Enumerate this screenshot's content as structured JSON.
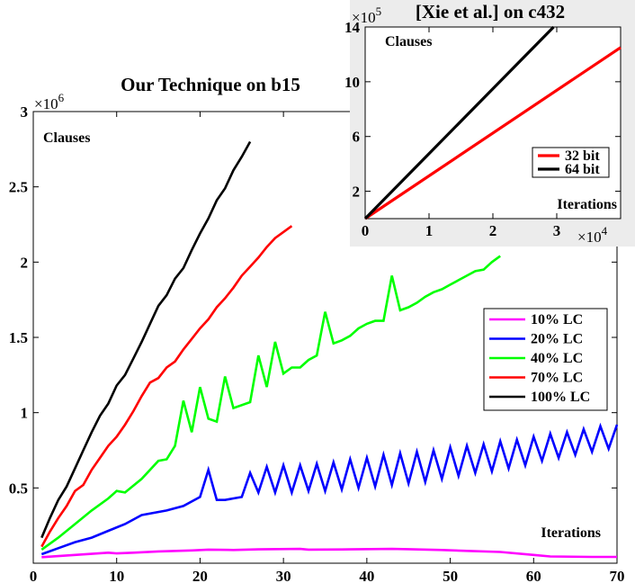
{
  "chart_data": [
    {
      "type": "line",
      "title": "Our Technique on b15",
      "xlabel": "Iterations",
      "ylabel": "Clauses",
      "y_multiplier_label": "×10",
      "y_multiplier_exp": "6",
      "xlim": [
        0,
        70
      ],
      "ylim": [
        0,
        3000000
      ],
      "xticks": [
        "0",
        "10",
        "20",
        "30",
        "40",
        "50",
        "60",
        "70"
      ],
      "yticks": [
        "0.5",
        "1",
        "1.5",
        "2",
        "2.5",
        "3"
      ],
      "grid": false,
      "legend_position": "right",
      "series": [
        {
          "name": "10% LC",
          "color": "#ff00ff",
          "points": [
            [
              1,
              40000
            ],
            [
              5,
              55000
            ],
            [
              9,
              70000
            ],
            [
              10,
              65000
            ],
            [
              12,
              70000
            ],
            [
              15,
              78000
            ],
            [
              19,
              85000
            ],
            [
              21,
              90000
            ],
            [
              24,
              88000
            ],
            [
              27,
              92000
            ],
            [
              32,
              95000
            ],
            [
              33,
              90000
            ],
            [
              38,
              92000
            ],
            [
              43,
              95000
            ],
            [
              45,
              93000
            ],
            [
              49,
              88000
            ],
            [
              52,
              82000
            ],
            [
              56,
              75000
            ],
            [
              60,
              55000
            ],
            [
              62,
              45000
            ],
            [
              67,
              42000
            ],
            [
              70,
              42000
            ]
          ]
        },
        {
          "name": "20% LC",
          "color": "#0000ff",
          "points": [
            [
              1,
              60000
            ],
            [
              3,
              100000
            ],
            [
              5,
              140000
            ],
            [
              7,
              170000
            ],
            [
              9,
              215000
            ],
            [
              11,
              260000
            ],
            [
              13,
              320000
            ],
            [
              16,
              350000
            ],
            [
              18,
              380000
            ],
            [
              20,
              440000
            ],
            [
              21,
              620000
            ],
            [
              22,
              420000
            ],
            [
              23,
              420000
            ],
            [
              24,
              430000
            ],
            [
              25,
              440000
            ],
            [
              26,
              600000
            ],
            [
              27,
              470000
            ],
            [
              28,
              640000
            ],
            [
              29,
              470000
            ],
            [
              30,
              650000
            ],
            [
              31,
              470000
            ],
            [
              32,
              650000
            ],
            [
              33,
              480000
            ],
            [
              34,
              660000
            ],
            [
              35,
              480000
            ],
            [
              36,
              670000
            ],
            [
              37,
              490000
            ],
            [
              38,
              690000
            ],
            [
              39,
              500000
            ],
            [
              40,
              700000
            ],
            [
              41,
              510000
            ],
            [
              42,
              720000
            ],
            [
              43,
              520000
            ],
            [
              44,
              730000
            ],
            [
              45,
              530000
            ],
            [
              46,
              740000
            ],
            [
              47,
              540000
            ],
            [
              48,
              750000
            ],
            [
              49,
              560000
            ],
            [
              50,
              770000
            ],
            [
              51,
              580000
            ],
            [
              52,
              780000
            ],
            [
              53,
              600000
            ],
            [
              54,
              790000
            ],
            [
              55,
              610000
            ],
            [
              56,
              810000
            ],
            [
              57,
              630000
            ],
            [
              58,
              820000
            ],
            [
              59,
              650000
            ],
            [
              60,
              840000
            ],
            [
              61,
              680000
            ],
            [
              62,
              860000
            ],
            [
              63,
              700000
            ],
            [
              64,
              870000
            ],
            [
              65,
              720000
            ],
            [
              66,
              890000
            ],
            [
              67,
              740000
            ],
            [
              68,
              910000
            ],
            [
              69,
              760000
            ],
            [
              70,
              920000
            ]
          ]
        },
        {
          "name": "40% LC",
          "color": "#00ff00",
          "points": [
            [
              1,
              90000
            ],
            [
              3,
              170000
            ],
            [
              5,
              260000
            ],
            [
              7,
              350000
            ],
            [
              9,
              430000
            ],
            [
              10,
              480000
            ],
            [
              11,
              470000
            ],
            [
              13,
              560000
            ],
            [
              15,
              680000
            ],
            [
              16,
              690000
            ],
            [
              17,
              780000
            ],
            [
              18,
              1080000
            ],
            [
              19,
              870000
            ],
            [
              20,
              1170000
            ],
            [
              21,
              960000
            ],
            [
              22,
              940000
            ],
            [
              23,
              1240000
            ],
            [
              24,
              1030000
            ],
            [
              26,
              1070000
            ],
            [
              27,
              1380000
            ],
            [
              28,
              1170000
            ],
            [
              29,
              1470000
            ],
            [
              30,
              1260000
            ],
            [
              31,
              1300000
            ],
            [
              32,
              1300000
            ],
            [
              33,
              1350000
            ],
            [
              34,
              1380000
            ],
            [
              35,
              1670000
            ],
            [
              36,
              1460000
            ],
            [
              37,
              1480000
            ],
            [
              38,
              1510000
            ],
            [
              39,
              1560000
            ],
            [
              40,
              1590000
            ],
            [
              41,
              1610000
            ],
            [
              42,
              1610000
            ],
            [
              43,
              1910000
            ],
            [
              44,
              1680000
            ],
            [
              45,
              1700000
            ],
            [
              46,
              1730000
            ],
            [
              47,
              1770000
            ],
            [
              48,
              1800000
            ],
            [
              49,
              1820000
            ],
            [
              50,
              1850000
            ],
            [
              51,
              1880000
            ],
            [
              52,
              1910000
            ],
            [
              53,
              1940000
            ],
            [
              54,
              1950000
            ],
            [
              55,
              2000000
            ],
            [
              56,
              2040000
            ]
          ]
        },
        {
          "name": "70% LC",
          "color": "#ff0000",
          "points": [
            [
              1,
              110000
            ],
            [
              2,
              210000
            ],
            [
              3,
              300000
            ],
            [
              4,
              380000
            ],
            [
              5,
              480000
            ],
            [
              6,
              520000
            ],
            [
              7,
              620000
            ],
            [
              8,
              700000
            ],
            [
              9,
              780000
            ],
            [
              10,
              840000
            ],
            [
              11,
              920000
            ],
            [
              12,
              1010000
            ],
            [
              13,
              1110000
            ],
            [
              14,
              1200000
            ],
            [
              15,
              1230000
            ],
            [
              16,
              1300000
            ],
            [
              17,
              1340000
            ],
            [
              18,
              1420000
            ],
            [
              19,
              1490000
            ],
            [
              20,
              1560000
            ],
            [
              21,
              1620000
            ],
            [
              22,
              1700000
            ],
            [
              23,
              1760000
            ],
            [
              24,
              1830000
            ],
            [
              25,
              1910000
            ],
            [
              26,
              1970000
            ],
            [
              27,
              2030000
            ],
            [
              28,
              2100000
            ],
            [
              29,
              2160000
            ],
            [
              30,
              2200000
            ],
            [
              31,
              2240000
            ]
          ]
        },
        {
          "name": "100% LC",
          "color": "#000000",
          "points": [
            [
              1,
              170000
            ],
            [
              2,
              300000
            ],
            [
              3,
              420000
            ],
            [
              4,
              510000
            ],
            [
              5,
              630000
            ],
            [
              6,
              750000
            ],
            [
              7,
              870000
            ],
            [
              8,
              980000
            ],
            [
              9,
              1060000
            ],
            [
              10,
              1180000
            ],
            [
              11,
              1250000
            ],
            [
              12,
              1360000
            ],
            [
              13,
              1470000
            ],
            [
              14,
              1590000
            ],
            [
              15,
              1710000
            ],
            [
              16,
              1780000
            ],
            [
              17,
              1890000
            ],
            [
              18,
              1960000
            ],
            [
              19,
              2080000
            ],
            [
              20,
              2190000
            ],
            [
              21,
              2290000
            ],
            [
              22,
              2410000
            ],
            [
              23,
              2490000
            ],
            [
              24,
              2610000
            ],
            [
              25,
              2700000
            ],
            [
              26,
              2800000
            ]
          ]
        }
      ]
    },
    {
      "type": "line",
      "title": "[Xie et al.] on c432",
      "xlabel": "Iterations",
      "ylabel": "Clauses",
      "x_multiplier_label": "×10",
      "x_multiplier_exp": "4",
      "y_multiplier_label": "×10",
      "y_multiplier_exp": "5",
      "xlim": [
        0,
        4
      ],
      "ylim": [
        0,
        14
      ],
      "xticks": [
        "0",
        "1",
        "2",
        "3"
      ],
      "yticks": [
        "2",
        "6",
        "10",
        "14"
      ],
      "grid": false,
      "legend_position": "right",
      "series": [
        {
          "name": "32 bit",
          "color": "#ff0000",
          "points": [
            [
              0,
              0
            ],
            [
              4,
              12.5
            ]
          ]
        },
        {
          "name": "64 bit",
          "color": "#000000",
          "points": [
            [
              0,
              0
            ],
            [
              2.95,
              14
            ]
          ]
        }
      ]
    }
  ]
}
